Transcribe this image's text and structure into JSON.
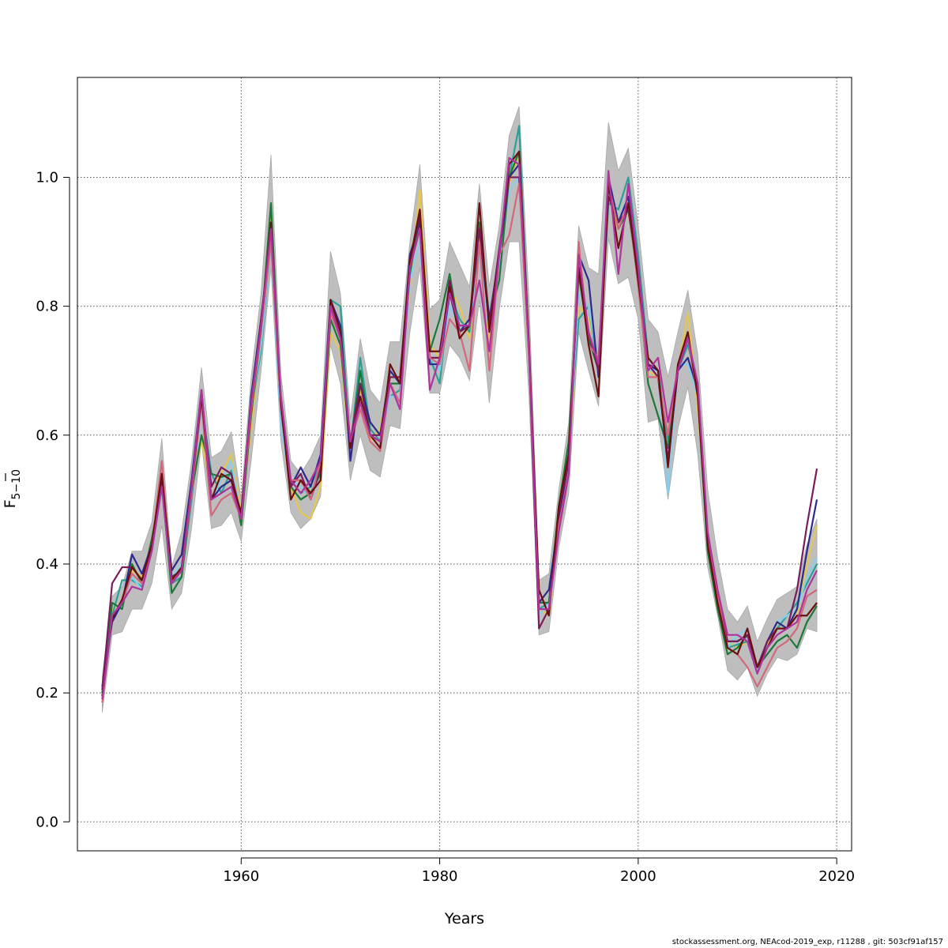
{
  "chart_data": {
    "type": "line",
    "title": "",
    "xlabel": "Years",
    "ylabel_main": "F",
    "ylabel_sub": "5−10",
    "xlim": [
      1943.5,
      2021.5
    ],
    "ylim": [
      -0.045,
      1.155
    ],
    "xticks": [
      1960,
      1980,
      2000,
      2020
    ],
    "yticks": [
      0.0,
      0.2,
      0.4,
      0.6,
      0.8,
      1.0
    ],
    "ytick_labels": [
      "0.0",
      "0.2",
      "0.4",
      "0.6",
      "0.8",
      "1.0"
    ],
    "grid": true,
    "legend": "none",
    "band_color": "#bebebe",
    "x": [
      1946,
      1947,
      1948,
      1949,
      1950,
      1951,
      1952,
      1953,
      1954,
      1955,
      1956,
      1957,
      1958,
      1959,
      1960,
      1961,
      1962,
      1963,
      1964,
      1965,
      1966,
      1967,
      1968,
      1969,
      1970,
      1971,
      1972,
      1973,
      1974,
      1975,
      1976,
      1977,
      1978,
      1979,
      1980,
      1981,
      1982,
      1983,
      1984,
      1985,
      1986,
      1987,
      1988,
      1989,
      1990,
      1991,
      1992,
      1993,
      1994,
      1995,
      1996,
      1997,
      1998,
      1999,
      2000,
      2001,
      2002,
      2003,
      2004,
      2005,
      2006,
      2007,
      2008,
      2009,
      2010,
      2011,
      2012,
      2013,
      2014,
      2015,
      2016,
      2017,
      2018
    ],
    "band_upper": [
      0.225,
      0.35,
      0.365,
      0.42,
      0.42,
      0.465,
      0.595,
      0.395,
      0.45,
      0.56,
      0.705,
      0.565,
      0.575,
      0.605,
      0.5,
      0.69,
      0.82,
      1.035,
      0.695,
      0.56,
      0.54,
      0.565,
      0.6,
      0.885,
      0.82,
      0.625,
      0.75,
      0.67,
      0.65,
      0.745,
      0.745,
      0.9,
      1.02,
      0.795,
      0.81,
      0.9,
      0.865,
      0.83,
      0.99,
      0.83,
      0.925,
      1.065,
      1.11,
      0.81,
      0.375,
      0.385,
      0.515,
      0.62,
      0.925,
      0.86,
      0.85,
      1.085,
      1.01,
      1.045,
      0.925,
      0.78,
      0.76,
      0.69,
      0.76,
      0.825,
      0.725,
      0.515,
      0.41,
      0.33,
      0.31,
      0.335,
      0.28,
      0.315,
      0.345,
      0.355,
      0.365,
      0.43,
      0.47
    ],
    "band_lower": [
      0.17,
      0.29,
      0.295,
      0.33,
      0.33,
      0.37,
      0.46,
      0.33,
      0.355,
      0.455,
      0.59,
      0.455,
      0.46,
      0.48,
      0.435,
      0.56,
      0.7,
      0.86,
      0.59,
      0.48,
      0.455,
      0.47,
      0.505,
      0.74,
      0.68,
      0.53,
      0.6,
      0.545,
      0.535,
      0.615,
      0.61,
      0.76,
      0.86,
      0.665,
      0.665,
      0.74,
      0.72,
      0.685,
      0.81,
      0.65,
      0.795,
      0.9,
      0.9,
      0.66,
      0.29,
      0.295,
      0.425,
      0.51,
      0.76,
      0.7,
      0.645,
      0.905,
      0.835,
      0.845,
      0.78,
      0.62,
      0.625,
      0.5,
      0.61,
      0.675,
      0.57,
      0.395,
      0.32,
      0.235,
      0.22,
      0.24,
      0.195,
      0.23,
      0.255,
      0.25,
      0.26,
      0.3,
      0.295
    ],
    "series": [
      {
        "color": "#e5c74f",
        "values": [
          0.195,
          0.33,
          0.34,
          0.39,
          0.38,
          0.43,
          0.53,
          0.375,
          0.395,
          0.52,
          0.59,
          0.52,
          0.54,
          0.57,
          0.48,
          0.61,
          0.76,
          0.945,
          0.65,
          0.52,
          0.48,
          0.47,
          0.52,
          0.76,
          0.73,
          0.57,
          0.67,
          0.59,
          0.61,
          0.69,
          0.69,
          0.83,
          0.98,
          0.74,
          0.72,
          0.83,
          0.8,
          0.75,
          0.91,
          0.74,
          0.87,
          0.99,
          1.04,
          0.74,
          0.33,
          0.32,
          0.47,
          0.56,
          0.8,
          0.78,
          0.72,
          0.97,
          0.92,
          0.96,
          0.85,
          0.7,
          0.69,
          0.58,
          0.7,
          0.79,
          0.64,
          0.45,
          0.35,
          0.28,
          0.27,
          0.28,
          0.24,
          0.27,
          0.31,
          0.3,
          0.32,
          0.4,
          0.46
        ]
      },
      {
        "color": "#2aa198",
        "values": [
          0.2,
          0.32,
          0.375,
          0.375,
          0.365,
          0.42,
          0.52,
          0.37,
          0.38,
          0.5,
          0.65,
          0.54,
          0.51,
          0.545,
          0.465,
          0.64,
          0.73,
          0.9,
          0.66,
          0.53,
          0.51,
          0.52,
          0.56,
          0.81,
          0.8,
          0.58,
          0.72,
          0.61,
          0.59,
          0.66,
          0.67,
          0.86,
          0.92,
          0.72,
          0.68,
          0.82,
          0.78,
          0.76,
          0.9,
          0.78,
          0.88,
          1.0,
          1.08,
          0.73,
          0.33,
          0.34,
          0.48,
          0.59,
          0.78,
          0.8,
          0.7,
          0.96,
          0.95,
          1.0,
          0.88,
          0.72,
          0.7,
          0.59,
          0.7,
          0.74,
          0.68,
          0.44,
          0.35,
          0.27,
          0.275,
          0.28,
          0.23,
          0.28,
          0.3,
          0.32,
          0.34,
          0.37,
          0.4
        ]
      },
      {
        "color": "#87ceeb",
        "values": [
          0.19,
          0.31,
          0.345,
          0.38,
          0.36,
          0.42,
          0.52,
          0.38,
          0.4,
          0.51,
          0.64,
          0.5,
          0.53,
          0.56,
          0.47,
          0.64,
          0.74,
          0.9,
          0.61,
          0.53,
          0.52,
          0.5,
          0.56,
          0.78,
          0.74,
          0.58,
          0.68,
          0.6,
          0.59,
          0.66,
          0.66,
          0.84,
          0.9,
          0.72,
          0.7,
          0.8,
          0.77,
          0.77,
          0.88,
          0.76,
          0.86,
          0.98,
          1.0,
          0.72,
          0.32,
          0.34,
          0.46,
          0.57,
          0.82,
          0.8,
          0.71,
          0.98,
          0.93,
          0.97,
          0.83,
          0.7,
          0.7,
          0.51,
          0.71,
          0.71,
          0.66,
          0.43,
          0.34,
          0.27,
          0.29,
          0.3,
          0.24,
          0.28,
          0.31,
          0.32,
          0.33,
          0.38,
          0.41
        ]
      },
      {
        "color": "#1b7837",
        "values": [
          0.2,
          0.34,
          0.33,
          0.4,
          0.37,
          0.44,
          0.53,
          0.355,
          0.38,
          0.51,
          0.6,
          0.54,
          0.535,
          0.54,
          0.46,
          0.63,
          0.76,
          0.96,
          0.65,
          0.52,
          0.5,
          0.51,
          0.54,
          0.78,
          0.74,
          0.58,
          0.7,
          0.6,
          0.59,
          0.68,
          0.68,
          0.85,
          0.94,
          0.73,
          0.78,
          0.85,
          0.76,
          0.77,
          0.93,
          0.78,
          0.84,
          1.0,
          1.04,
          0.73,
          0.34,
          0.34,
          0.49,
          0.59,
          0.85,
          0.75,
          0.7,
          0.99,
          0.92,
          0.95,
          0.84,
          0.68,
          0.63,
          0.58,
          0.7,
          0.75,
          0.66,
          0.42,
          0.33,
          0.26,
          0.27,
          0.29,
          0.24,
          0.26,
          0.28,
          0.29,
          0.27,
          0.31,
          0.335
        ]
      },
      {
        "color": "#2c2a8c",
        "values": [
          0.21,
          0.31,
          0.34,
          0.415,
          0.385,
          0.43,
          0.54,
          0.39,
          0.415,
          0.53,
          0.67,
          0.5,
          0.52,
          0.53,
          0.47,
          0.66,
          0.78,
          0.91,
          0.64,
          0.52,
          0.55,
          0.52,
          0.57,
          0.81,
          0.77,
          0.56,
          0.68,
          0.62,
          0.6,
          0.7,
          0.68,
          0.88,
          0.93,
          0.71,
          0.71,
          0.82,
          0.76,
          0.78,
          0.92,
          0.78,
          0.88,
          1.0,
          1.02,
          0.73,
          0.34,
          0.36,
          0.47,
          0.56,
          0.88,
          0.84,
          0.69,
          1.0,
          0.93,
          0.97,
          0.86,
          0.71,
          0.7,
          0.56,
          0.7,
          0.72,
          0.67,
          0.43,
          0.34,
          0.28,
          0.28,
          0.29,
          0.24,
          0.28,
          0.31,
          0.3,
          0.33,
          0.42,
          0.5
        ]
      },
      {
        "color": "#7a1c5c",
        "values": [
          0.205,
          0.37,
          0.395,
          0.395,
          0.375,
          0.43,
          0.53,
          0.38,
          0.39,
          0.52,
          0.66,
          0.52,
          0.55,
          0.54,
          0.475,
          0.64,
          0.78,
          0.91,
          0.65,
          0.52,
          0.54,
          0.5,
          0.55,
          0.8,
          0.75,
          0.59,
          0.68,
          0.6,
          0.6,
          0.69,
          0.69,
          0.87,
          0.94,
          0.72,
          0.72,
          0.84,
          0.76,
          0.77,
          0.92,
          0.77,
          0.89,
          1.0,
          1.0,
          0.72,
          0.3,
          0.33,
          0.48,
          0.56,
          0.86,
          0.76,
          0.7,
          0.97,
          0.93,
          0.95,
          0.85,
          0.71,
          0.69,
          0.56,
          0.7,
          0.75,
          0.67,
          0.44,
          0.35,
          0.28,
          0.28,
          0.29,
          0.24,
          0.28,
          0.3,
          0.3,
          0.36,
          0.46,
          0.548
        ]
      },
      {
        "color": "#d4687a",
        "values": [
          0.185,
          0.32,
          0.34,
          0.385,
          0.37,
          0.43,
          0.56,
          0.37,
          0.39,
          0.51,
          0.65,
          0.475,
          0.5,
          0.51,
          0.47,
          0.64,
          0.76,
          0.9,
          0.64,
          0.53,
          0.53,
          0.5,
          0.56,
          0.79,
          0.75,
          0.59,
          0.64,
          0.59,
          0.575,
          0.68,
          0.65,
          0.86,
          0.92,
          0.72,
          0.71,
          0.78,
          0.76,
          0.7,
          0.9,
          0.7,
          0.88,
          0.91,
          0.99,
          0.72,
          0.33,
          0.33,
          0.46,
          0.54,
          0.9,
          0.74,
          0.72,
          0.99,
          0.92,
          0.96,
          0.83,
          0.69,
          0.69,
          0.6,
          0.71,
          0.75,
          0.66,
          0.44,
          0.35,
          0.27,
          0.26,
          0.24,
          0.21,
          0.24,
          0.27,
          0.28,
          0.3,
          0.35,
          0.36
        ]
      },
      {
        "color": "#6b0f0f",
        "values": [
          0.195,
          0.315,
          0.345,
          0.395,
          0.375,
          0.43,
          0.54,
          0.375,
          0.395,
          0.52,
          0.66,
          0.5,
          0.54,
          0.53,
          0.48,
          0.65,
          0.77,
          0.93,
          0.65,
          0.5,
          0.53,
          0.51,
          0.53,
          0.81,
          0.76,
          0.58,
          0.66,
          0.6,
          0.58,
          0.71,
          0.68,
          0.87,
          0.95,
          0.73,
          0.73,
          0.83,
          0.75,
          0.77,
          0.96,
          0.76,
          0.88,
          1.02,
          1.04,
          0.74,
          0.36,
          0.32,
          0.49,
          0.57,
          0.86,
          0.74,
          0.66,
          0.99,
          0.89,
          0.96,
          0.84,
          0.72,
          0.7,
          0.55,
          0.71,
          0.76,
          0.66,
          0.43,
          0.34,
          0.27,
          0.26,
          0.3,
          0.24,
          0.27,
          0.3,
          0.3,
          0.32,
          0.32,
          0.34
        ]
      },
      {
        "color": "#b0329e",
        "values": [
          0.19,
          0.32,
          0.34,
          0.365,
          0.36,
          0.42,
          0.52,
          0.37,
          0.39,
          0.52,
          0.67,
          0.5,
          0.51,
          0.52,
          0.47,
          0.65,
          0.77,
          0.92,
          0.66,
          0.53,
          0.51,
          0.53,
          0.56,
          0.8,
          0.75,
          0.59,
          0.65,
          0.6,
          0.59,
          0.68,
          0.64,
          0.86,
          0.92,
          0.67,
          0.72,
          0.82,
          0.77,
          0.77,
          0.84,
          0.73,
          0.88,
          1.03,
          1.02,
          0.73,
          0.33,
          0.33,
          0.45,
          0.54,
          0.88,
          0.76,
          0.71,
          1.01,
          0.85,
          0.99,
          0.86,
          0.7,
          0.72,
          0.62,
          0.7,
          0.75,
          0.68,
          0.45,
          0.36,
          0.29,
          0.29,
          0.28,
          0.23,
          0.27,
          0.29,
          0.3,
          0.31,
          0.36,
          0.39
        ]
      }
    ]
  },
  "footer": {
    "text": "stockassessment.org, NEAcod-2019_exp, r11288 , git: 503cf91af157"
  }
}
